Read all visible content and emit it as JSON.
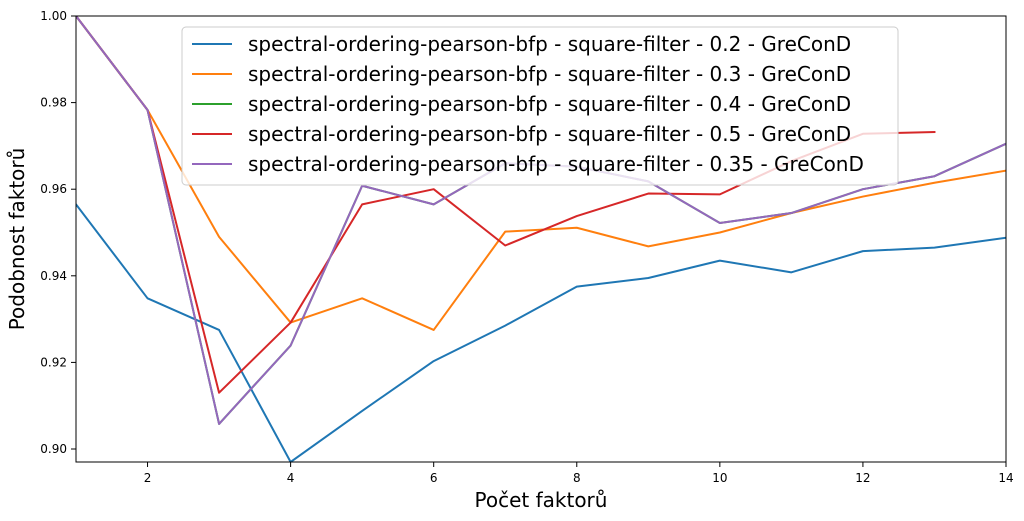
{
  "chart_data": {
    "type": "line",
    "xlabel": "Počet faktorů",
    "ylabel": "Podobnost faktorů",
    "xlim": [
      1,
      14
    ],
    "ylim": [
      0.897,
      1.0
    ],
    "xticks": [
      2,
      4,
      6,
      8,
      10,
      12,
      14
    ],
    "yticks": [
      0.9,
      0.92,
      0.94,
      0.96,
      0.98,
      1.0
    ],
    "ytick_labels": [
      "0.90",
      "0.92",
      "0.94",
      "0.96",
      "0.98",
      "1.00"
    ],
    "grid": false,
    "legend_position": "top-center",
    "series": [
      {
        "name": "spectral-ordering-pearson-bfp - square-filter - 0.2 - GreConD",
        "color": "#1f77b4",
        "x": [
          1,
          2,
          3,
          4,
          5,
          6,
          7,
          8,
          9,
          10,
          11,
          12,
          13,
          14
        ],
        "y": [
          0.9565,
          0.9348,
          0.9275,
          0.897,
          0.9088,
          0.9203,
          0.9285,
          0.9375,
          0.9395,
          0.9435,
          0.9408,
          0.9457,
          0.9465,
          0.9488
        ]
      },
      {
        "name": "spectral-ordering-pearson-bfp - square-filter - 0.3 - GreConD",
        "color": "#ff7f0e",
        "x": [
          1,
          2,
          3,
          4,
          5,
          6,
          7,
          8,
          9,
          10,
          11,
          12,
          13,
          14
        ],
        "y": [
          1.0,
          0.9783,
          0.949,
          0.9292,
          0.9348,
          0.9275,
          0.9502,
          0.9511,
          0.9468,
          0.95,
          0.9545,
          0.9583,
          0.9615,
          0.9643
        ]
      },
      {
        "name": "spectral-ordering-pearson-bfp - square-filter - 0.4 - GreConD",
        "color": "#2ca02c",
        "x": [
          1,
          2,
          3,
          4,
          5,
          6,
          7,
          8,
          9,
          10,
          11,
          12,
          13,
          14
        ],
        "y": [
          1.0,
          0.9783,
          0.9058,
          0.9239,
          0.9608,
          0.9565,
          0.966,
          0.9652,
          0.9618,
          0.9522,
          0.9545,
          0.96,
          0.963,
          0.9705
        ]
      },
      {
        "name": "spectral-ordering-pearson-bfp - square-filter - 0.5 - GreConD",
        "color": "#d62728",
        "x": [
          1,
          2,
          3,
          4,
          5,
          6,
          7,
          8,
          9,
          10,
          11,
          12,
          13
        ],
        "y": [
          1.0,
          0.9783,
          0.913,
          0.9292,
          0.9565,
          0.96,
          0.947,
          0.9538,
          0.959,
          0.9588,
          0.9665,
          0.9728,
          0.9732
        ]
      },
      {
        "name": "spectral-ordering-pearson-bfp - square-filter - 0.35 - GreConD",
        "color": "#9467bd",
        "x": [
          1,
          2,
          3,
          4,
          5,
          6,
          7,
          8,
          9,
          10,
          11,
          12,
          13,
          14
        ],
        "y": [
          1.0,
          0.9783,
          0.9058,
          0.9239,
          0.9608,
          0.9565,
          0.966,
          0.9652,
          0.9618,
          0.9522,
          0.9545,
          0.96,
          0.963,
          0.9705
        ]
      }
    ]
  }
}
